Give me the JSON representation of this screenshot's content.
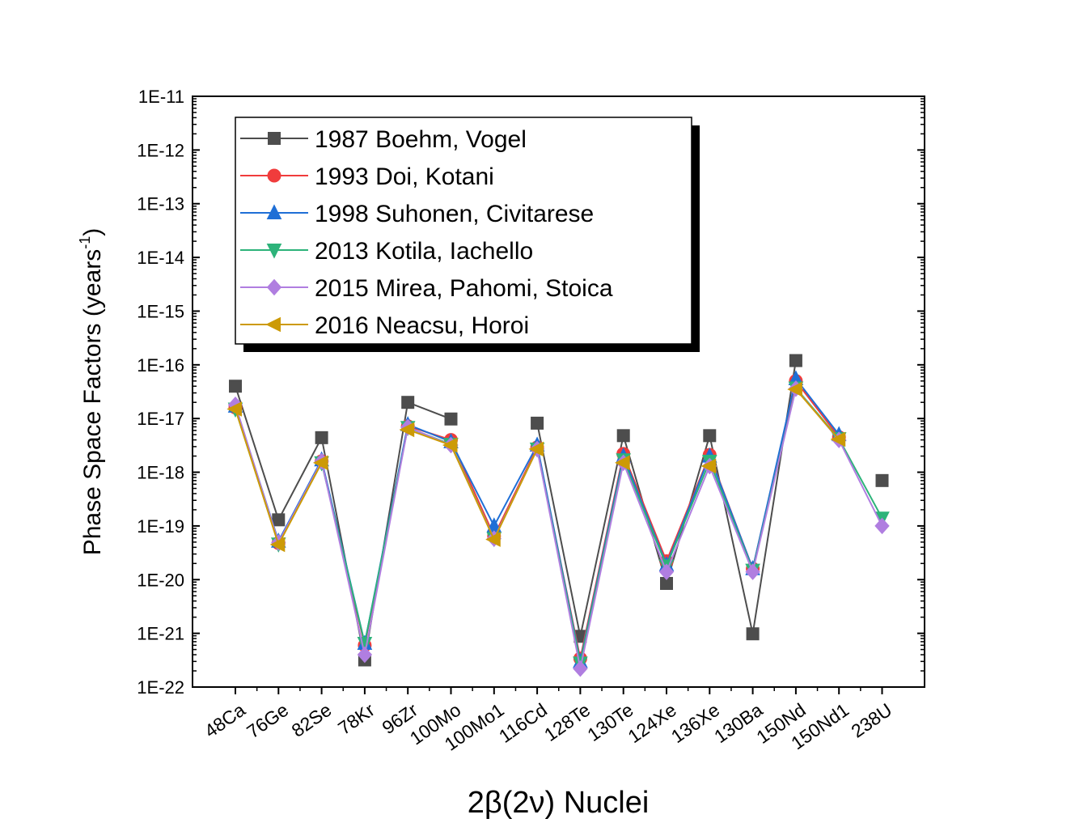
{
  "chart_data": {
    "type": "line",
    "xlabel": "2β(2ν) Nuclei",
    "ylabel_main": "Phase Space Factors (years",
    "ylabel_sup": "-1",
    "ylabel_end": ")",
    "yscale": "log",
    "ylim": [
      1e-22,
      1e-11
    ],
    "ytick_labels": [
      "1E-22",
      "1E-21",
      "1E-20",
      "1E-19",
      "1E-18",
      "1E-17",
      "1E-16",
      "1E-15",
      "1E-14",
      "1E-13",
      "1E-12",
      "1E-11"
    ],
    "categories": [
      "48Ca",
      "76Ge",
      "82Se",
      "78Kr",
      "96Zr",
      "100Mo",
      "100Mo1",
      "116Cd",
      "128Te",
      "130Te",
      "124Xe",
      "136Xe",
      "130Ba",
      "150Nd",
      "150Nd1",
      "238U"
    ],
    "legend_position": "upper-left",
    "series": [
      {
        "name": "1987 Boehm, Vogel",
        "color": "#4d4d4d",
        "marker": "square",
        "values": [
          4e-17,
          1.3e-19,
          4.4e-18,
          3.2e-22,
          2e-17,
          9.8e-18,
          null,
          8.2e-18,
          8.8e-22,
          4.8e-18,
          8.5e-21,
          4.8e-18,
          9.8e-22,
          1.2e-16,
          null,
          7e-19
        ]
      },
      {
        "name": "1993 Doi, Kotani",
        "color": "#f03c3c",
        "marker": "circle",
        "values": [
          1.6e-17,
          4.8e-20,
          1.6e-18,
          6e-22,
          7.2e-18,
          4e-18,
          6.5e-20,
          2.9e-18,
          3.4e-22,
          2.2e-18,
          2.2e-20,
          2.1e-18,
          1.6e-20,
          5e-17,
          4.5e-18,
          null
        ]
      },
      {
        "name": "1998 Suhonen, Civitarese",
        "color": "#1f6fd6",
        "marker": "triangle-up",
        "values": [
          1.7e-17,
          5.2e-20,
          1.7e-18,
          6.5e-22,
          7.7e-18,
          3.7e-18,
          1e-19,
          3.2e-18,
          3e-22,
          2e-18,
          1.9e-20,
          2e-18,
          1.6e-20,
          5.5e-17,
          5e-18,
          null
        ]
      },
      {
        "name": "2013 Kotila, Iachello",
        "color": "#2db37a",
        "marker": "triangle-down",
        "values": [
          1.5e-17,
          4.6e-20,
          1.5e-18,
          6.5e-22,
          6.8e-18,
          3.3e-18,
          5.8e-20,
          2.7e-18,
          2.8e-22,
          1.7e-18,
          1.8e-20,
          1.6e-18,
          1.5e-20,
          3.7e-17,
          4.2e-18,
          1.4e-19
        ]
      },
      {
        "name": "2015 Mirea, Pahomi, Stoica",
        "color": "#b07ee0",
        "marker": "diamond",
        "values": [
          1.8e-17,
          4.9e-20,
          1.6e-18,
          4e-22,
          6.9e-18,
          3.2e-18,
          5.8e-20,
          2.7e-18,
          2.2e-22,
          1.5e-18,
          1.4e-20,
          1.3e-18,
          1.4e-20,
          3.6e-17,
          4e-18,
          1e-19
        ]
      },
      {
        "name": "2016 Neacsu, Horoi",
        "color": "#cc9a06",
        "marker": "triangle-left",
        "values": [
          1.5e-17,
          4.5e-20,
          1.5e-18,
          null,
          6.2e-18,
          3.2e-18,
          5.6e-20,
          2.7e-18,
          null,
          1.5e-18,
          null,
          1.3e-18,
          null,
          3.5e-17,
          4.1e-18,
          null
        ]
      }
    ]
  }
}
